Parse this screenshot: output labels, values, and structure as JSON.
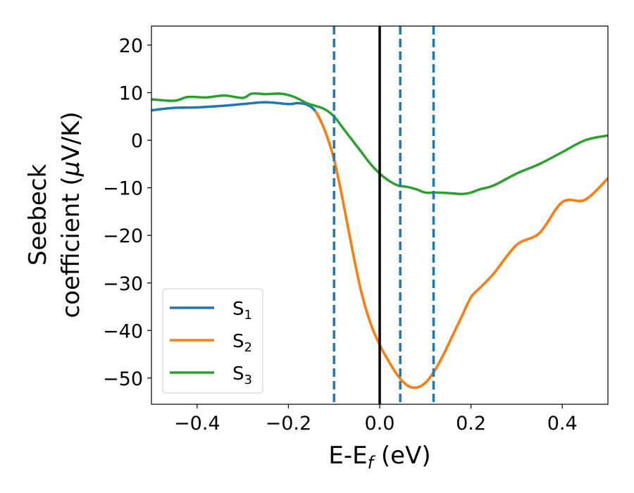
{
  "chart_data": {
    "type": "line",
    "xlabel": {
      "main": "E-E",
      "sub": "f",
      "unit": " (eV)"
    },
    "ylabel": {
      "line1": "Seebeck",
      "line2_pre": "coefficient  (",
      "line2_mu": "μ",
      "line2_post": "V/K)"
    },
    "xlim": [
      -0.5,
      0.5
    ],
    "ylim": [
      -55.5,
      24
    ],
    "x_ticks": [
      -0.4,
      -0.2,
      0.0,
      0.2,
      0.4
    ],
    "x_tick_labels": [
      "−0.4",
      "−0.2",
      "0.0",
      "0.2",
      "0.4"
    ],
    "y_ticks": [
      20,
      10,
      0,
      -10,
      -20,
      -30,
      -40,
      -50
    ],
    "y_tick_labels": [
      "20",
      "10",
      "0",
      "−10",
      "−20",
      "−30",
      "−40",
      "−50"
    ],
    "grid": false,
    "legend_position": "lower-left",
    "fermi_line_x": 0.0,
    "dashed_lines_x": [
      -0.1,
      0.045,
      0.118
    ],
    "series": [
      {
        "name": "S",
        "sub": "1",
        "color": "#1f77b4",
        "x": [
          -0.5,
          -0.45,
          -0.4,
          -0.35,
          -0.3,
          -0.25,
          -0.2,
          -0.18,
          -0.16,
          -0.14,
          -0.12,
          -0.1,
          -0.08,
          -0.06,
          -0.04,
          -0.02,
          0.0,
          0.02,
          0.04,
          0.06,
          0.08,
          0.1,
          0.12,
          0.14,
          0.16,
          0.18,
          0.2,
          0.22,
          0.25,
          0.3,
          0.35,
          0.4,
          0.45,
          0.5
        ],
        "y": [
          6.3,
          6.8,
          6.9,
          7.2,
          7.6,
          8.0,
          7.6,
          7.8,
          7.5,
          6.0,
          2.0,
          -4.0,
          -13.0,
          -23.0,
          -32.0,
          -38.5,
          -43.0,
          -46.5,
          -49.5,
          -51.5,
          -52.0,
          -51.0,
          -48.5,
          -45.0,
          -41.0,
          -37.0,
          -33.0,
          -31.0,
          -28.0,
          -22.0,
          -19.5,
          -13.0,
          -12.5,
          -8.0
        ]
      },
      {
        "name": "S",
        "sub": "2",
        "color": "#ff7f0e",
        "x": [
          -0.14,
          -0.12,
          -0.1,
          -0.08,
          -0.06,
          -0.04,
          -0.02,
          0.0,
          0.02,
          0.04,
          0.06,
          0.08,
          0.1,
          0.12,
          0.14,
          0.16,
          0.18,
          0.2,
          0.22,
          0.25,
          0.3,
          0.35,
          0.4,
          0.45,
          0.5
        ],
        "y": [
          6.0,
          2.0,
          -4.0,
          -13.0,
          -23.0,
          -32.0,
          -38.5,
          -43.0,
          -46.5,
          -49.5,
          -51.5,
          -52.0,
          -51.0,
          -48.5,
          -45.0,
          -41.0,
          -37.0,
          -33.0,
          -31.0,
          -28.0,
          -22.0,
          -19.5,
          -13.0,
          -12.5,
          -8.0
        ]
      },
      {
        "name": "S",
        "sub": "3",
        "color": "#2ca02c",
        "x": [
          -0.5,
          -0.45,
          -0.42,
          -0.38,
          -0.34,
          -0.3,
          -0.28,
          -0.25,
          -0.22,
          -0.2,
          -0.18,
          -0.16,
          -0.14,
          -0.12,
          -0.1,
          -0.08,
          -0.06,
          -0.04,
          -0.02,
          0.0,
          0.02,
          0.04,
          0.06,
          0.08,
          0.1,
          0.12,
          0.15,
          0.18,
          0.2,
          0.22,
          0.25,
          0.3,
          0.35,
          0.4,
          0.45,
          0.5
        ],
        "y": [
          8.6,
          8.3,
          9.1,
          9.0,
          9.4,
          8.9,
          9.8,
          9.7,
          9.8,
          9.5,
          8.8,
          7.8,
          7.2,
          6.5,
          5.0,
          2.5,
          0.0,
          -2.5,
          -5.0,
          -7.0,
          -8.5,
          -9.5,
          -9.8,
          -10.3,
          -11.0,
          -11.0,
          -11.1,
          -11.3,
          -11.0,
          -10.3,
          -9.5,
          -7.0,
          -5.0,
          -2.5,
          0.0,
          1.0
        ]
      }
    ]
  }
}
